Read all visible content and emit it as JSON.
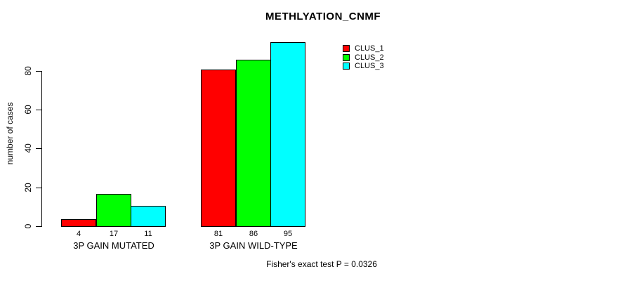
{
  "chart_data": {
    "type": "bar",
    "title": "METHLYATION_CNMF",
    "ylabel": "number of cases",
    "xlabel": "",
    "categories": [
      "3P GAIN MUTATED",
      "3P GAIN WILD-TYPE"
    ],
    "series": [
      {
        "name": "CLUS_1",
        "color": "#FF0000",
        "values": [
          4,
          81
        ]
      },
      {
        "name": "CLUS_2",
        "color": "#00FF00",
        "values": [
          17,
          86
        ]
      },
      {
        "name": "CLUS_3",
        "color": "#00FFFF",
        "values": [
          11,
          95
        ]
      }
    ],
    "show_bar_values": true,
    "yticks": [
      0,
      20,
      40,
      60,
      80
    ],
    "ylim": [
      0,
      95
    ],
    "grid": false,
    "legend_position": "top-right",
    "legend_entries": [
      "CLUS_1",
      "CLUS_2",
      "CLUS_3"
    ],
    "annotation": "Fisher's exact test P = 0.0326",
    "colors": {
      "bar_border": "#000000",
      "axis": "#000000",
      "text": "#000000",
      "background": "#FFFFFF"
    }
  }
}
